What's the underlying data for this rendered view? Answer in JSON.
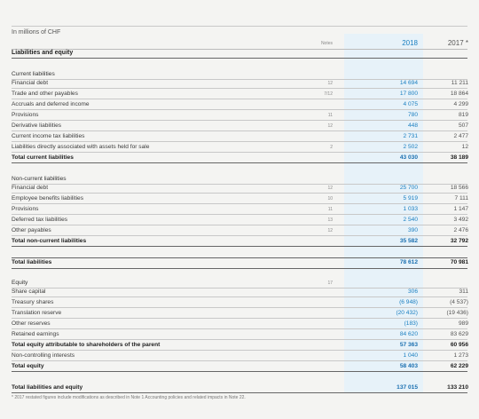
{
  "unit": "In millions of CHF",
  "headers": {
    "notes": "Notes",
    "y2018": "2018",
    "y2017": "2017 *"
  },
  "title": "Liabilities and equity",
  "current": {
    "heading": "Current liabilities",
    "rows": [
      {
        "label": "Financial debt",
        "note": "12",
        "v2018": "14 694",
        "v2017": "11 211"
      },
      {
        "label": "Trade and other payables",
        "note": "7/12",
        "v2018": "17 800",
        "v2017": "18 864"
      },
      {
        "label": "Accruals and deferred income",
        "note": "",
        "v2018": "4 075",
        "v2017": "4 299"
      },
      {
        "label": "Provisions",
        "note": "11",
        "v2018": "780",
        "v2017": "819"
      },
      {
        "label": "Derivative liabilities",
        "note": "12",
        "v2018": "448",
        "v2017": "507"
      },
      {
        "label": "Current income tax liabilities",
        "note": "",
        "v2018": "2 731",
        "v2017": "2 477"
      },
      {
        "label": "Liabilities directly associated with assets held for sale",
        "note": "2",
        "v2018": "2 502",
        "v2017": "12"
      }
    ],
    "total": {
      "label": "Total current liabilities",
      "v2018": "43 030",
      "v2017": "38 189"
    }
  },
  "noncurrent": {
    "heading": "Non-current liabilities",
    "rows": [
      {
        "label": "Financial debt",
        "note": "12",
        "v2018": "25 700",
        "v2017": "18 566"
      },
      {
        "label": "Employee benefits liabilities",
        "note": "10",
        "v2018": "5 919",
        "v2017": "7 111"
      },
      {
        "label": "Provisions",
        "note": "11",
        "v2018": "1 033",
        "v2017": "1 147"
      },
      {
        "label": "Deferred tax liabilities",
        "note": "13",
        "v2018": "2 540",
        "v2017": "3 492"
      },
      {
        "label": "Other payables",
        "note": "12",
        "v2018": "390",
        "v2017": "2 476"
      }
    ],
    "total": {
      "label": "Total non-current liabilities",
      "v2018": "35 582",
      "v2017": "32 792"
    }
  },
  "total_liabilities": {
    "label": "Total liabilities",
    "v2018": "78 612",
    "v2017": "70 981"
  },
  "equity": {
    "heading": "Equity",
    "heading_note": "17",
    "rows": [
      {
        "label": "Share capital",
        "v2018": "306",
        "v2017": "311"
      },
      {
        "label": "Treasury shares",
        "v2018": "(6 948)",
        "v2017": "(4 537)"
      },
      {
        "label": "Translation reserve",
        "v2018": "(20 432)",
        "v2017": "(19 436)"
      },
      {
        "label": "Other reserves",
        "v2018": "(183)",
        "v2017": "989"
      },
      {
        "label": "Retained earnings",
        "v2018": "84 620",
        "v2017": "83 629"
      }
    ],
    "parent": {
      "label": "Total equity attributable to shareholders of the parent",
      "v2018": "57 363",
      "v2017": "60 956"
    },
    "nci": {
      "label": "Non-controlling interests",
      "v2018": "1 040",
      "v2017": "1 273"
    },
    "total": {
      "label": "Total equity",
      "v2018": "58 403",
      "v2017": "62 229"
    }
  },
  "grand_total": {
    "label": "Total liabilities and equity",
    "v2018": "137 015",
    "v2017": "133 210"
  },
  "footnote": "*   2017 restated figures include modifications as described in Note 1 Accounting policies and related impacts in Note 22."
}
